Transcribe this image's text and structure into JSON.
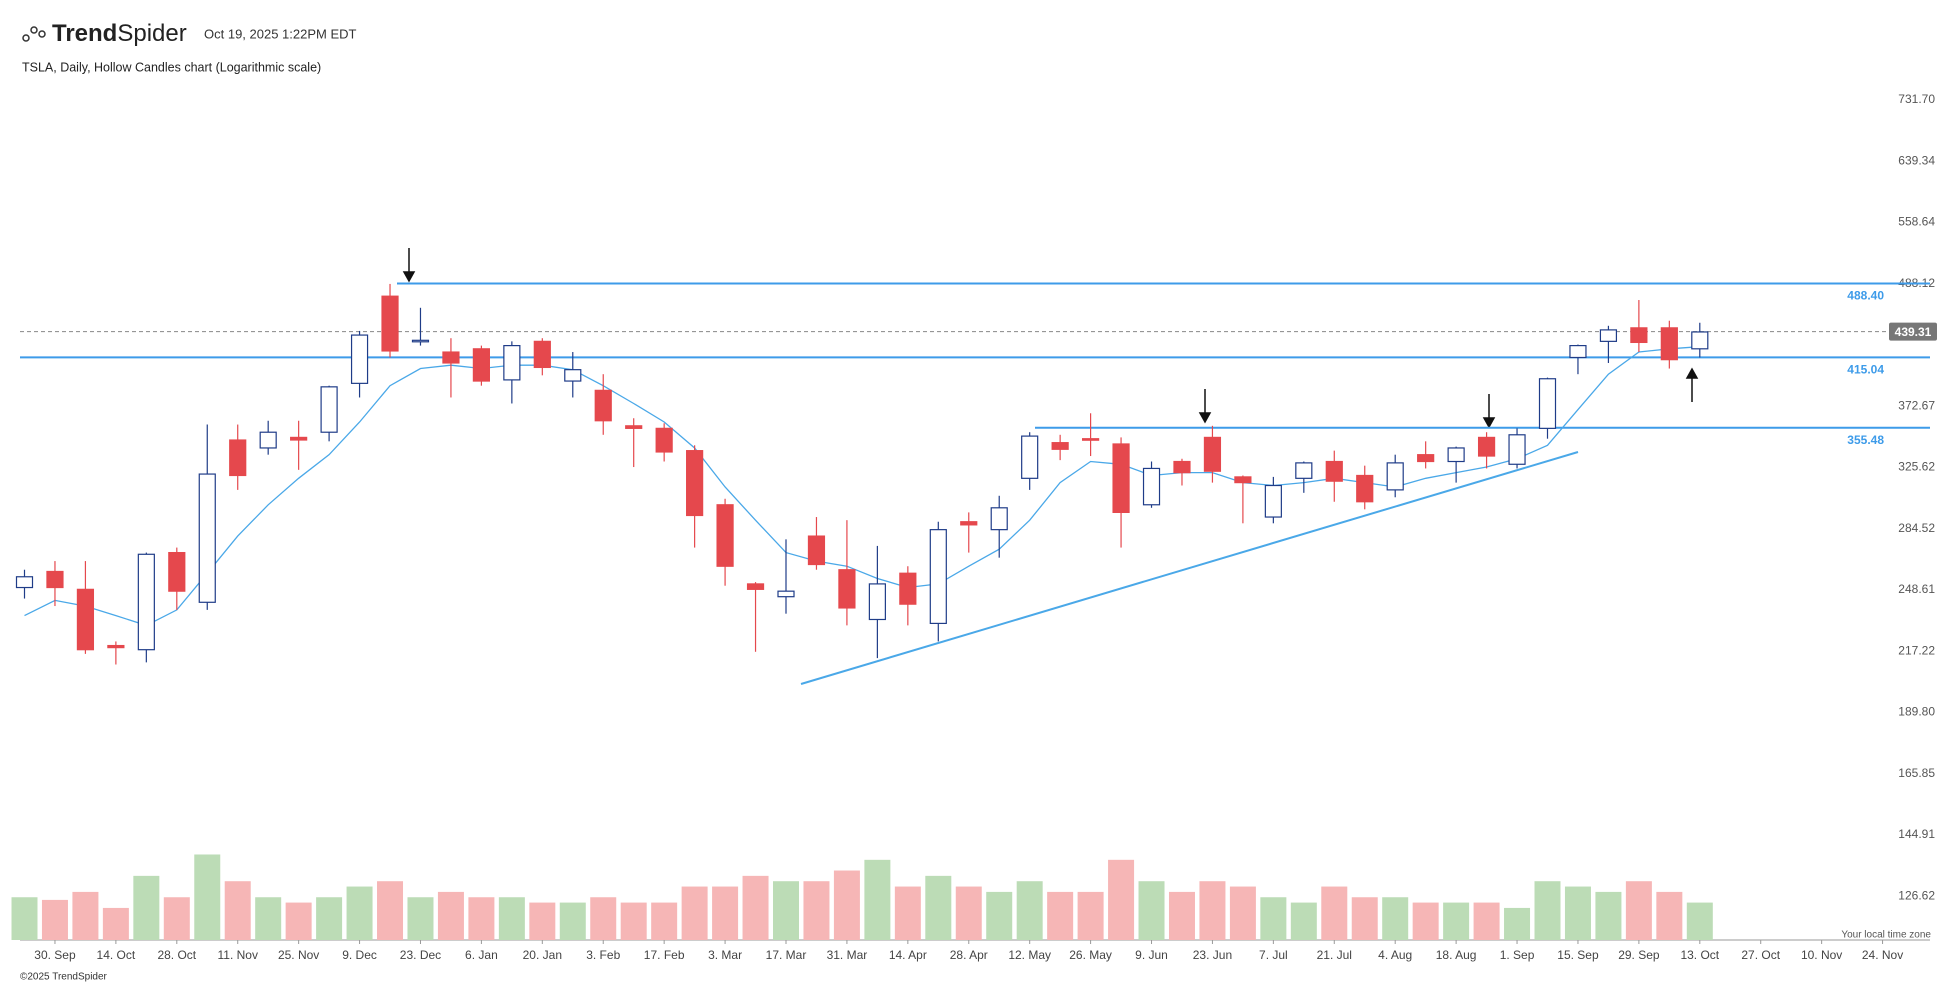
{
  "header": {
    "logo_bold": "Trend",
    "logo_light": "Spider",
    "timestamp": "Oct 19, 2025 1:22PM EDT",
    "footer": "©2025 TrendSpider",
    "timezone_note": "Your local time zone"
  },
  "chart_data": {
    "type": "candlestick",
    "title": "TSLA, Daily, Hollow Candles chart (Logarithmic scale)",
    "log_scale": true,
    "categories": [
      null,
      "30. Sep",
      null,
      "14. Oct",
      null,
      "28. Oct",
      null,
      "11. Nov",
      null,
      "25. Nov",
      null,
      "9. Dec",
      null,
      "23. Dec",
      null,
      "6. Jan",
      null,
      "20. Jan",
      null,
      "3. Feb",
      null,
      "17. Feb",
      null,
      "3. Mar",
      null,
      "17. Mar",
      null,
      "31. Mar",
      null,
      "14. Apr",
      null,
      "28. Apr",
      null,
      "12. May",
      null,
      "26. May",
      null,
      "9. Jun",
      null,
      "23. Jun",
      null,
      "7. Jul",
      null,
      "21. Jul",
      null,
      "4. Aug",
      null,
      "18. Aug",
      null,
      "1. Sep",
      null,
      "15. Sep",
      null,
      "29. Sep",
      null,
      "13. Oct",
      null,
      "27. Oct",
      null,
      "10. Nov",
      null,
      "24. Nov"
    ],
    "open": [
      250,
      259,
      249,
      220,
      218,
      270,
      242,
      346,
      340,
      348,
      352,
      392,
      475,
      431,
      420,
      423,
      395,
      430,
      394,
      386,
      357,
      355,
      338,
      300,
      252,
      245,
      280,
      260,
      233,
      258,
      231,
      289,
      284,
      318,
      344,
      347,
      343,
      300,
      330,
      348,
      319,
      292,
      318,
      330,
      320,
      310,
      335,
      330,
      348,
      328,
      355,
      415,
      430,
      443,
      443,
      423,
      null,
      null,
      null,
      null,
      null,
      null
    ],
    "high": [
      260,
      265,
      265,
      222,
      270,
      273,
      358,
      358,
      361,
      361,
      390,
      440,
      488,
      463,
      433,
      426,
      430,
      433,
      420,
      400,
      363,
      359,
      342,
      304,
      253,
      278,
      292,
      290,
      274,
      262,
      289,
      295,
      306,
      352,
      350,
      367,
      348,
      330,
      332,
      357,
      320,
      319,
      330,
      338,
      327,
      335,
      345,
      341,
      352,
      355,
      397,
      427,
      445,
      471,
      450,
      448,
      null,
      null,
      null,
      null,
      null,
      null
    ],
    "low": [
      244,
      240,
      216,
      211,
      212,
      238,
      238,
      310,
      335,
      324,
      345,
      380,
      415,
      426,
      380,
      390,
      375,
      399,
      380,
      350,
      326,
      330,
      273,
      251,
      217,
      236,
      260,
      230,
      214,
      230,
      222,
      270,
      267,
      310,
      331,
      334,
      273,
      298,
      313,
      315,
      288,
      288,
      308,
      302,
      297,
      305,
      325,
      315,
      325,
      325,
      347,
      400,
      410,
      420,
      405,
      415,
      null,
      null,
      null,
      null,
      null,
      null
    ],
    "close": [
      256,
      250,
      218,
      219,
      269,
      248,
      321,
      320,
      352,
      346,
      389,
      436,
      421,
      431,
      410,
      394,
      426,
      406,
      404,
      361,
      355,
      337,
      293,
      262,
      249,
      248,
      263,
      239,
      252,
      241,
      284,
      287,
      298,
      349,
      339,
      346,
      295,
      325,
      322,
      323,
      315,
      313,
      329,
      316,
      302,
      329,
      330,
      340,
      334,
      350,
      396,
      426,
      441,
      429,
      413,
      439,
      null,
      null,
      null,
      null,
      null,
      null
    ],
    "up_color": "#1f3c88",
    "down_color": "#e5484d",
    "ma": {
      "color": "#4aa8e8",
      "values": [
        235,
        243,
        240,
        235,
        230,
        238,
        258,
        280,
        300,
        318,
        335,
        360,
        390,
        405,
        408,
        405,
        408,
        408,
        404,
        390,
        375,
        360,
        340,
        312,
        290,
        270,
        265,
        262,
        255,
        250,
        252,
        262,
        272,
        290,
        315,
        330,
        328,
        320,
        322,
        322,
        315,
        313,
        315,
        318,
        315,
        312,
        318,
        322,
        326,
        332,
        342,
        370,
        400,
        420,
        423,
        425,
        null,
        null,
        null,
        null,
        null,
        null
      ]
    },
    "volume": [
      80,
      75,
      90,
      60,
      120,
      80,
      160,
      110,
      80,
      70,
      80,
      100,
      110,
      80,
      90,
      80,
      80,
      70,
      70,
      80,
      70,
      70,
      100,
      100,
      120,
      110,
      110,
      130,
      150,
      100,
      120,
      100,
      90,
      110,
      90,
      90,
      150,
      110,
      90,
      110,
      100,
      80,
      70,
      100,
      80,
      80,
      70,
      70,
      70,
      60,
      110,
      100,
      90,
      110,
      90,
      70,
      null,
      null,
      null,
      null,
      null,
      null
    ],
    "vlim": [
      0,
      290
    ],
    "volume_up_color": "#bcdcb6",
    "volume_down_color": "#f6b6b6",
    "ylim": [
      115,
      769
    ],
    "yticks": [
      {
        "value": 731.7,
        "label": "731.70"
      },
      639.34,
      558.64,
      488.12,
      372.67,
      325.62,
      284.52,
      248.61,
      217.22,
      {
        "value": 189.8,
        "label": "189.80"
      },
      165.85,
      144.91,
      126.62
    ],
    "levels": [
      {
        "value": 488.4,
        "label": "488.40"
      },
      415.04,
      355.48
    ],
    "level_color": "#3d9be9",
    "last_price": 439.31
  }
}
